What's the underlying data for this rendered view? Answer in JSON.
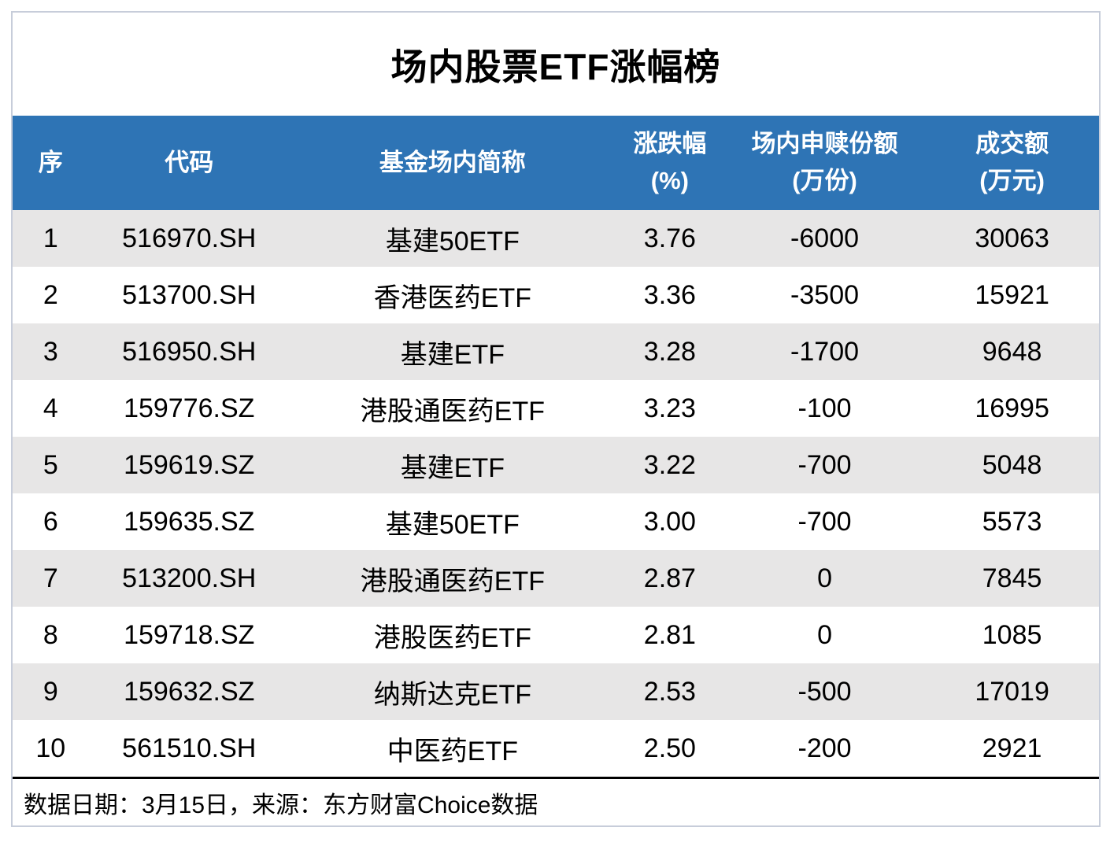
{
  "chart_data": {
    "type": "table",
    "title": "场内股票ETF涨幅榜",
    "columns": [
      {
        "label": "序",
        "unit": ""
      },
      {
        "label": "代码",
        "unit": ""
      },
      {
        "label": "基金场内简称",
        "unit": ""
      },
      {
        "label": "涨跌幅",
        "unit": "(%)"
      },
      {
        "label": "场内申赎份额",
        "unit": "(万份)"
      },
      {
        "label": "成交额",
        "unit": "(万元)"
      }
    ],
    "rows": [
      [
        "1",
        "516970.SH",
        "基建50ETF",
        "3.76",
        "-6000",
        "30063"
      ],
      [
        "2",
        "513700.SH",
        "香港医药ETF",
        "3.36",
        "-3500",
        "15921"
      ],
      [
        "3",
        "516950.SH",
        "基建ETF",
        "3.28",
        "-1700",
        "9648"
      ],
      [
        "4",
        "159776.SZ",
        "港股通医药ETF",
        "3.23",
        "-100",
        "16995"
      ],
      [
        "5",
        "159619.SZ",
        "基建ETF",
        "3.22",
        "-700",
        "5048"
      ],
      [
        "6",
        "159635.SZ",
        "基建50ETF",
        "3.00",
        "-700",
        "5573"
      ],
      [
        "7",
        "513200.SH",
        "港股通医药ETF",
        "2.87",
        "0",
        "7845"
      ],
      [
        "8",
        "159718.SZ",
        "港股医药ETF",
        "2.81",
        "0",
        "1085"
      ],
      [
        "9",
        "159632.SZ",
        "纳斯达克ETF",
        "2.53",
        "-500",
        "17019"
      ],
      [
        "10",
        "561510.SH",
        "中医药ETF",
        "2.50",
        "-200",
        "2921"
      ]
    ],
    "footer": "数据日期：3月15日，来源：东方财富Choice数据"
  },
  "colors": {
    "header_bg": "#2E74B5",
    "header_text": "#FFFFFF",
    "row_alt_bg": "#E7E6E6",
    "body_text": "#000000",
    "card_border": "#C7CDDA",
    "bottom_rule": "#000000"
  }
}
